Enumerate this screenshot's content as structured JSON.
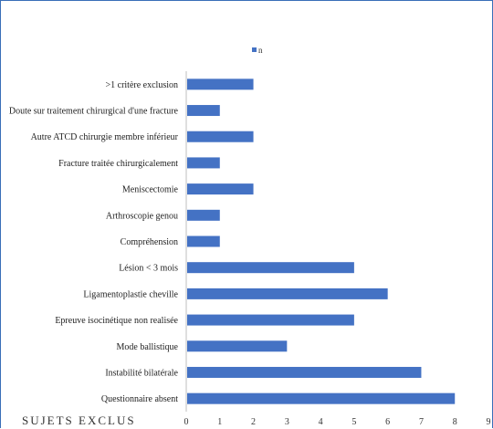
{
  "chart_data": {
    "type": "bar",
    "orientation": "horizontal",
    "categories": [
      ">1 critère exclusion",
      "Doute sur traitement chirurgical d'une fracture",
      "Autre ATCD chirurgie membre inférieur",
      "Fracture traitée chirurgicalement",
      "Meniscectomie",
      "Arthroscopie genou",
      "Compréhension",
      "Lésion < 3 mois",
      "Ligamentoplastie cheville",
      "Epreuve isocinétique non realisée",
      "Mode ballistique",
      "Instabilité bilatérale",
      "Questionnaire absent"
    ],
    "series": [
      {
        "name": "n",
        "values": [
          2,
          1,
          2,
          1,
          2,
          1,
          1,
          5,
          6,
          5,
          3,
          7,
          8
        ]
      }
    ],
    "xlim": [
      0,
      9
    ],
    "xticks": [
      0,
      1,
      2,
      3,
      4,
      5,
      6,
      7,
      8,
      9
    ],
    "grid": false,
    "legend_position": "top-center",
    "bar_color": "#4472c4",
    "axis_color": "#bfbfbf"
  },
  "footer": {
    "title": "SUJETS EXCLUS"
  }
}
